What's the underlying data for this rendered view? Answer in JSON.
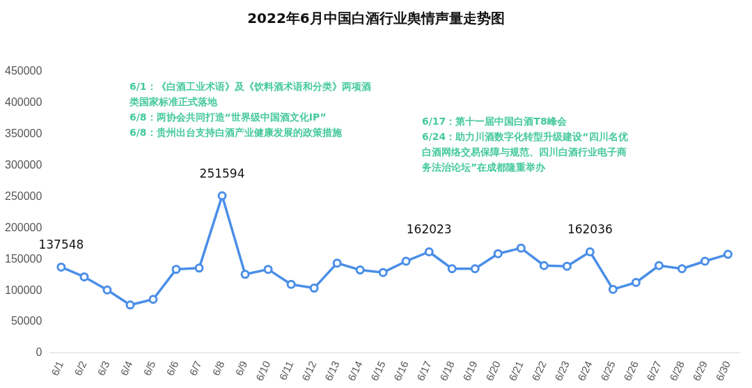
{
  "chart_data": {
    "type": "line",
    "title": "2022年6月中国白酒行业舆情声量走势图",
    "categories": [
      "6/1",
      "6/2",
      "6/3",
      "6/4",
      "6/5",
      "6/6",
      "6/7",
      "6/8",
      "6/9",
      "6/10",
      "6/11",
      "6/12",
      "6/13",
      "6/14",
      "6/15",
      "6/16",
      "6/17",
      "6/18",
      "6/19",
      "6/20",
      "6/21",
      "6/22",
      "6/23",
      "6/24",
      "6/25",
      "6/26",
      "6/27",
      "6/28",
      "6/29",
      "6/30"
    ],
    "series": [
      {
        "color": "#4a8ee8",
        "values": [
          137548,
          122000,
          101000,
          77000,
          86000,
          134000,
          136000,
          251594,
          126000,
          134000,
          110000,
          104000,
          144000,
          133000,
          129000,
          147000,
          162023,
          135000,
          135000,
          159000,
          168000,
          140000,
          139000,
          162036,
          102000,
          113000,
          140000,
          135000,
          147000,
          158000
        ],
        "value_labels": [
          "137548",
          null,
          null,
          null,
          null,
          null,
          null,
          "251594",
          null,
          null,
          null,
          null,
          null,
          null,
          null,
          null,
          "162023",
          null,
          null,
          null,
          null,
          null,
          null,
          "162036",
          null,
          null,
          null,
          null,
          null,
          null
        ]
      }
    ],
    "ylim": [
      0,
      450000
    ],
    "yticks": [
      0,
      50000,
      100000,
      150000,
      200000,
      250000,
      300000,
      350000,
      400000,
      450000
    ],
    "grid": false,
    "legend": false,
    "marker": "circle",
    "line_style": "solid",
    "annotations": [
      "6/1：《白酒工业术语》及《饮料酒术语和分类》两项酒类国家标准正式落地",
      "6/8：两协会共同打造“世界级中国酒文化IP”",
      "6/8：贵州出台支持白酒产业健康发展的政策措施",
      "6/17：第十一届中国白酒T8峰会",
      "6/24：助力川酒数字化转型升级建设“四川名优白酒网络交易保障与规范、四川白酒行业电子商务法治论坛”在成都隆重举办"
    ]
  }
}
